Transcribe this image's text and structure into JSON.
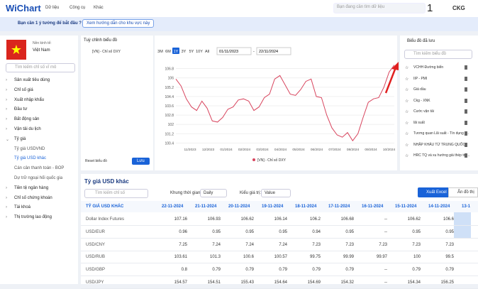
{
  "header": {
    "logo": "WiChart",
    "menus": [
      "Dữ liệu",
      "Công cụ",
      "Khác"
    ],
    "search_placeholder": "Bạn đang cần tìm dữ liệu",
    "badge": "1",
    "brand": "CKG"
  },
  "banner": {
    "text": "Bạn cần 1 ý tưởng để bắt đầu ?",
    "button": "Xem hướng dẫn cho khu vực này"
  },
  "sidebar": {
    "economy_label": "Nền kinh tế:",
    "economy": "Việt Nam",
    "search_placeholder": "Tìm kiếm chỉ số vĩ mô",
    "items": [
      {
        "label": "Sản xuất tiêu dùng",
        "level": 0
      },
      {
        "label": "Chỉ số giá",
        "level": 0
      },
      {
        "label": "Xuất nhập khẩu",
        "level": 0
      },
      {
        "label": "Đầu tư",
        "level": 0
      },
      {
        "label": "Bất động sản",
        "level": 0
      },
      {
        "label": "Vận tải du lịch",
        "level": 0
      },
      {
        "label": "Tỷ giá",
        "level": 0,
        "open": true
      },
      {
        "label": "Tỷ giá USDVND",
        "level": 1
      },
      {
        "label": "Tỷ giá USD khác",
        "level": 1,
        "active": true
      },
      {
        "label": "Cán cân thanh toán - BOP",
        "level": 1
      },
      {
        "label": "Dự trữ ngoại hối quốc gia",
        "level": 1
      },
      {
        "label": "Tiền tệ ngân hàng",
        "level": 0
      },
      {
        "label": "Chỉ số chứng khoán",
        "level": 0
      },
      {
        "label": "Tài khoá",
        "level": 0
      },
      {
        "label": "Thị trường lao động",
        "level": 0
      }
    ]
  },
  "chart_panel": {
    "title": "Tuỳ chỉnh biểu đồ",
    "indicator": "[VN] - Chỉ số DXY",
    "reset": "Reset biểu đồ",
    "save": "Lưu"
  },
  "chart_data": {
    "type": "line",
    "periods": [
      "3M",
      "6M",
      "1Y",
      "3Y",
      "5Y",
      "10Y",
      "All"
    ],
    "active_period": "1Y",
    "date_from": "01/11/2023",
    "date_sep": "-",
    "date_to": "22/11/2024",
    "x_labels": [
      "11/2023",
      "12/2023",
      "01/2024",
      "02/2024",
      "03/2024",
      "04/2024",
      "05/2024",
      "06/2024",
      "07/2024",
      "08/2024",
      "09/2024",
      "10/2024"
    ],
    "ylim": [
      100,
      107.2
    ],
    "yticks": [
      106.8,
      106,
      105.2,
      104.4,
      103.6,
      102.8,
      102,
      101.2,
      100.4
    ],
    "series": [
      {
        "name": "[VN] - Chỉ số DXY",
        "color": "#d8455e",
        "values": [
          105.9,
          105.3,
          104.2,
          103.5,
          103.2,
          104.0,
          103.4,
          102.3,
          102.2,
          102.6,
          103.3,
          103.5,
          104.1,
          104.2,
          104.0,
          103.2,
          103.5,
          104.3,
          104.6,
          105.9,
          106.2,
          105.4,
          104.6,
          104.5,
          105.0,
          105.7,
          105.9,
          104.4,
          104.3,
          102.8,
          101.7,
          101.1,
          100.9,
          101.3,
          100.6,
          101.2,
          102.6,
          103.9,
          104.2,
          104.3,
          105.2,
          106.5,
          107.1
        ]
      }
    ]
  },
  "saved_panel": {
    "title": "Biểu đồ đã lưu",
    "search_placeholder": "Tìm kiếm biểu đồ",
    "items": [
      "VCHH Đường biển",
      "IIP - PMI",
      "Giá dầu",
      "Ckg - XNK",
      "Cước vận tải",
      "lãi suất",
      "Tương quan Lãi suất - Tín dụng -...",
      "NHẬP KHẨU TỪ TRUNG QUỐC",
      "HRC TQ và xu hướng giá thép tro..."
    ]
  },
  "table_section": {
    "title": "Tỷ giá USD khác",
    "search_placeholder": "Tìm kiếm chỉ số",
    "timeframe_label": "Khung thời gian:",
    "timeframe": "Daily",
    "value_type_label": "Kiểu giá trị:",
    "value_type": "Value",
    "export": "Xuất Excel",
    "hide_chart": "Ẩn đồ thị"
  },
  "table": {
    "header": [
      "TỶ GIÁ USD KHÁC",
      "22-11-2024",
      "21-11-2024",
      "20-11-2024",
      "19-11-2024",
      "18-11-2024",
      "17-11-2024",
      "16-11-2024",
      "15-11-2024",
      "14-11-2024",
      "13-1"
    ],
    "rows": [
      [
        "Dollar Index Futures",
        "107.16",
        "106.93",
        "106.62",
        "106.14",
        "106.2",
        "106.68",
        "--",
        "106.62",
        "106.6"
      ],
      [
        "USD/EUR",
        "0.96",
        "0.95",
        "0.95",
        "0.95",
        "0.94",
        "0.95",
        "--",
        "0.95",
        "0.95"
      ],
      [
        "USD/CNY",
        "7.25",
        "7.24",
        "7.24",
        "7.24",
        "7.23",
        "7.23",
        "7.23",
        "7.23",
        "7.23"
      ],
      [
        "USD/RUB",
        "103.61",
        "101.3",
        "100.6",
        "100.57",
        "99.75",
        "99.99",
        "99.97",
        "100",
        "99.5"
      ],
      [
        "USD/GBP",
        "0.8",
        "0.79",
        "0.79",
        "0.79",
        "0.79",
        "0.79",
        "--",
        "0.79",
        "0.79"
      ],
      [
        "USD/JPY",
        "154.57",
        "154.51",
        "155.43",
        "154.64",
        "154.69",
        "154.32",
        "--",
        "154.34",
        "156.25"
      ]
    ]
  }
}
